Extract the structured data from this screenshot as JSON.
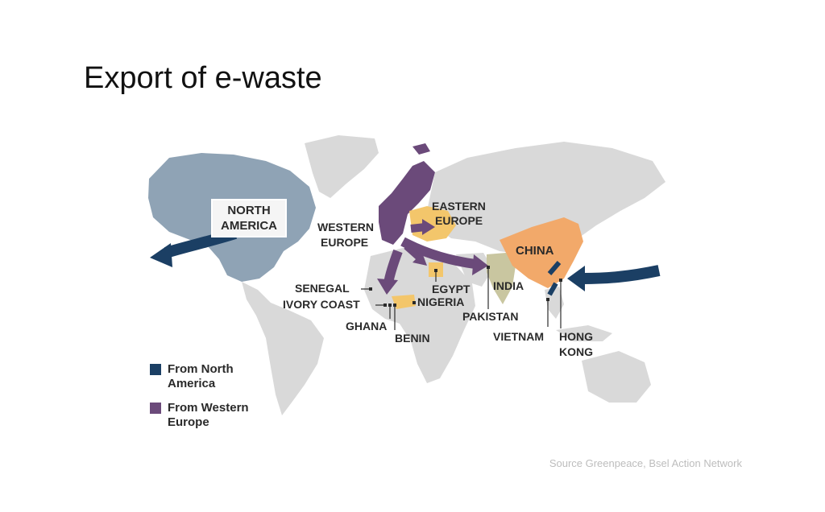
{
  "title": "Export of e-waste",
  "source": "Source Greenpeace, Bsel Action Network",
  "colors": {
    "north_america": "#1b3f64",
    "western_europe": "#6b4a7a",
    "land": "#d9d9d9",
    "na_land": "#8fa3b5",
    "we_land": "#6b4a7a",
    "recipient": "#f3c66b",
    "china": "#f2a96a",
    "india": "#c9c6a0"
  },
  "legend": [
    {
      "label": "From North America",
      "color_key": "north_america"
    },
    {
      "label": "From Western Europe",
      "color_key": "western_europe"
    }
  ],
  "regions": {
    "north_america": {
      "line1": "NORTH",
      "line2": "AMERICA"
    },
    "western_europe": {
      "line1": "WESTERN",
      "line2": "EUROPE"
    },
    "eastern_europe": {
      "line1": "EASTERN",
      "line2": "EUROPE"
    },
    "china": "CHINA",
    "india": "INDIA",
    "egypt": "EGYPT",
    "pakistan": "PAKISTAN",
    "nigeria": "NIGERIA",
    "senegal": "SENEGAL",
    "ivory_coast": "IVORY COAST",
    "ghana": "GHANA",
    "benin": "BENIN",
    "vietnam": "VIETNAM",
    "hong_kong": {
      "line1": "HONG",
      "line2": "KONG"
    }
  }
}
